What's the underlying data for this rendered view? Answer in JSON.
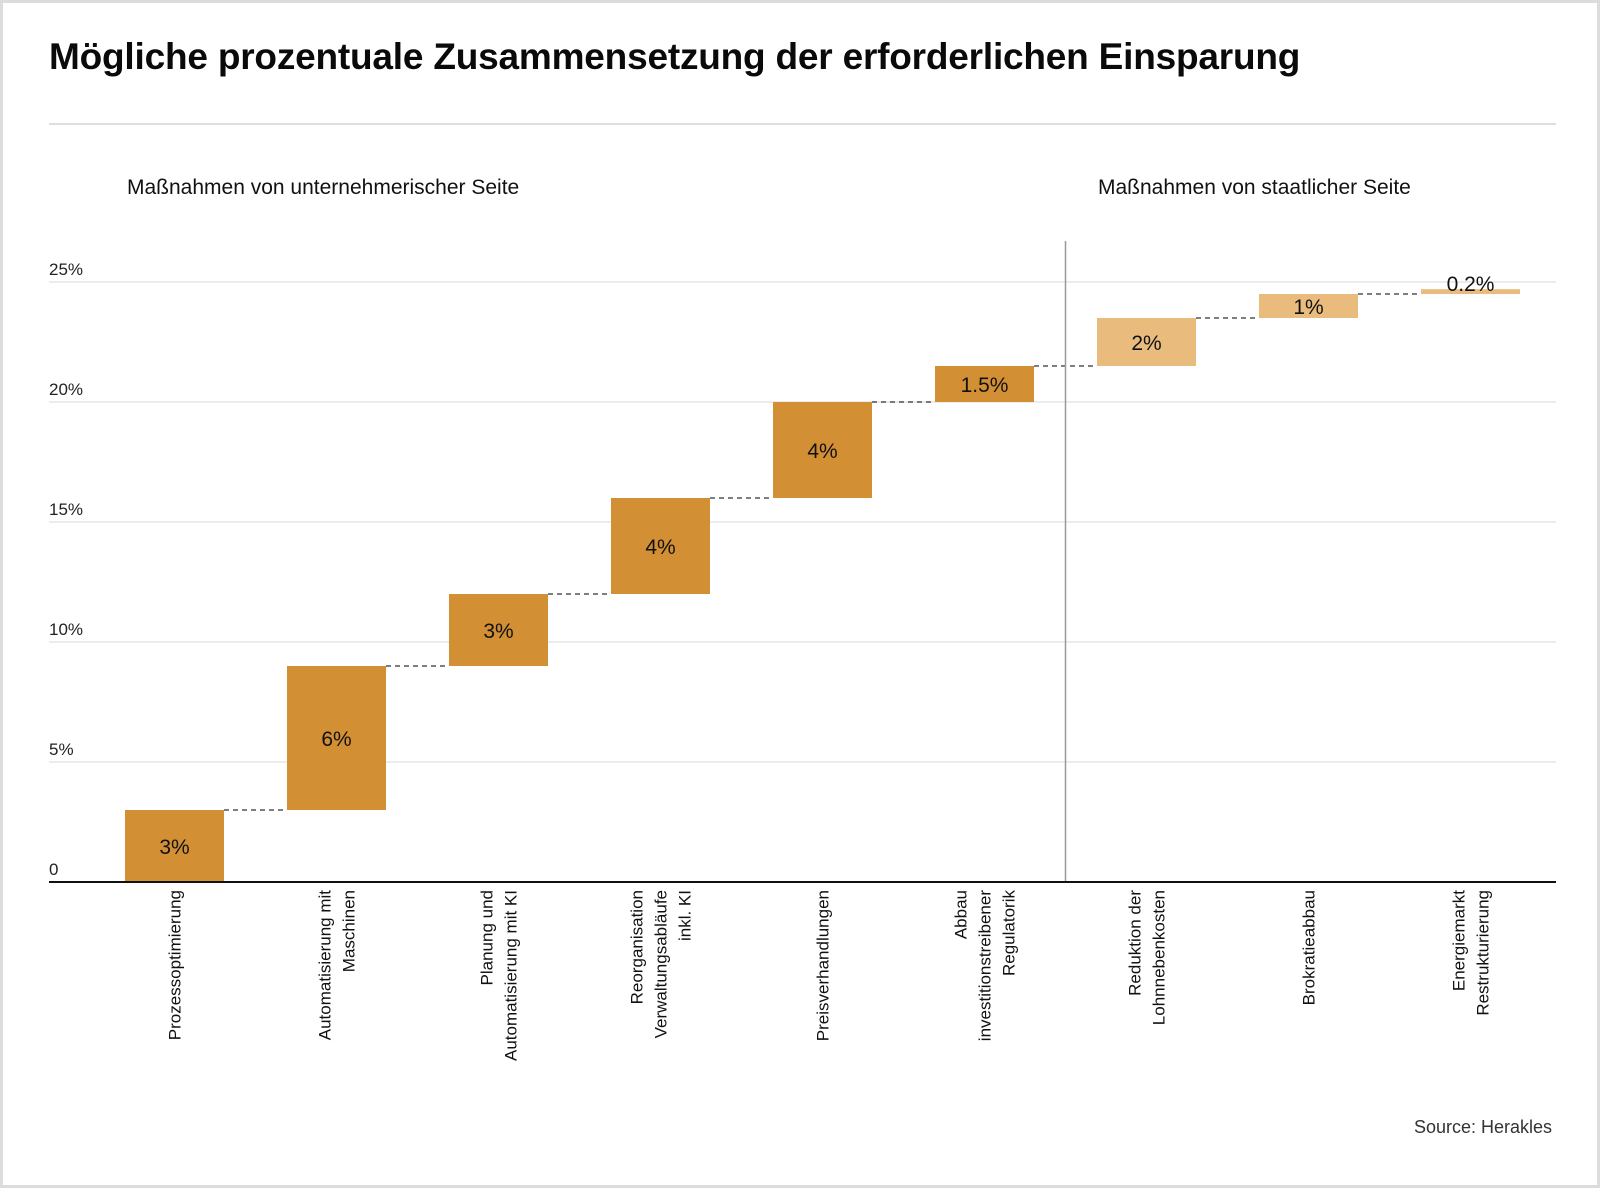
{
  "title": "Mögliche prozentuale Zusammensetzung der erforderlichen Einsparung",
  "sections": {
    "left": "Maßnahmen von unternehmerischer Seite",
    "right": "Maßnahmen von staatlicher Seite"
  },
  "source": "Source: Herakles",
  "colors": {
    "company": "#D38F33",
    "state": "#E9BC7E",
    "grid": "#e6e6e6",
    "axis": "#111111",
    "divider": "#999999",
    "connector": "#333333"
  },
  "chart_data": {
    "type": "waterfall",
    "title": "Mögliche prozentuale Zusammensetzung der erforderlichen Einsparung",
    "xlabel": "",
    "ylabel": "",
    "ylim": [
      0,
      25
    ],
    "yticks": [
      0,
      5,
      10,
      15,
      20,
      25
    ],
    "ytick_labels": [
      "0",
      "5%",
      "10%",
      "15%",
      "20%",
      "25%"
    ],
    "grid": true,
    "categories": [
      [
        "Prozessoptimierung"
      ],
      [
        "Automatisierung mit",
        "Maschinen"
      ],
      [
        "Planung und",
        "Automatisierung mit KI"
      ],
      [
        "Reorganisation",
        "Verwaltungsabläufe",
        "inkl. KI"
      ],
      [
        "Preisverhandlungen"
      ],
      [
        "Abbau",
        "investitionstreibener",
        "Regulatorik"
      ],
      [
        "Reduktion der",
        "Lohnnebenkosten"
      ],
      [
        "Brokratieabbau"
      ],
      [
        "Energiemarkt",
        "Restrukturierung"
      ]
    ],
    "values": [
      3,
      6,
      3,
      4,
      4,
      1.5,
      2,
      1,
      0.2
    ],
    "value_labels": [
      "3%",
      "6%",
      "3%",
      "4%",
      "4%",
      "1.5%",
      "2%",
      "1%",
      "0.2%"
    ],
    "groups": [
      "company",
      "company",
      "company",
      "company",
      "company",
      "company",
      "state",
      "state",
      "state"
    ],
    "group_names": {
      "company": "Maßnahmen von unternehmerischer Seite",
      "state": "Maßnahmen von staatlicher Seite"
    },
    "divider_after_index": 5
  }
}
